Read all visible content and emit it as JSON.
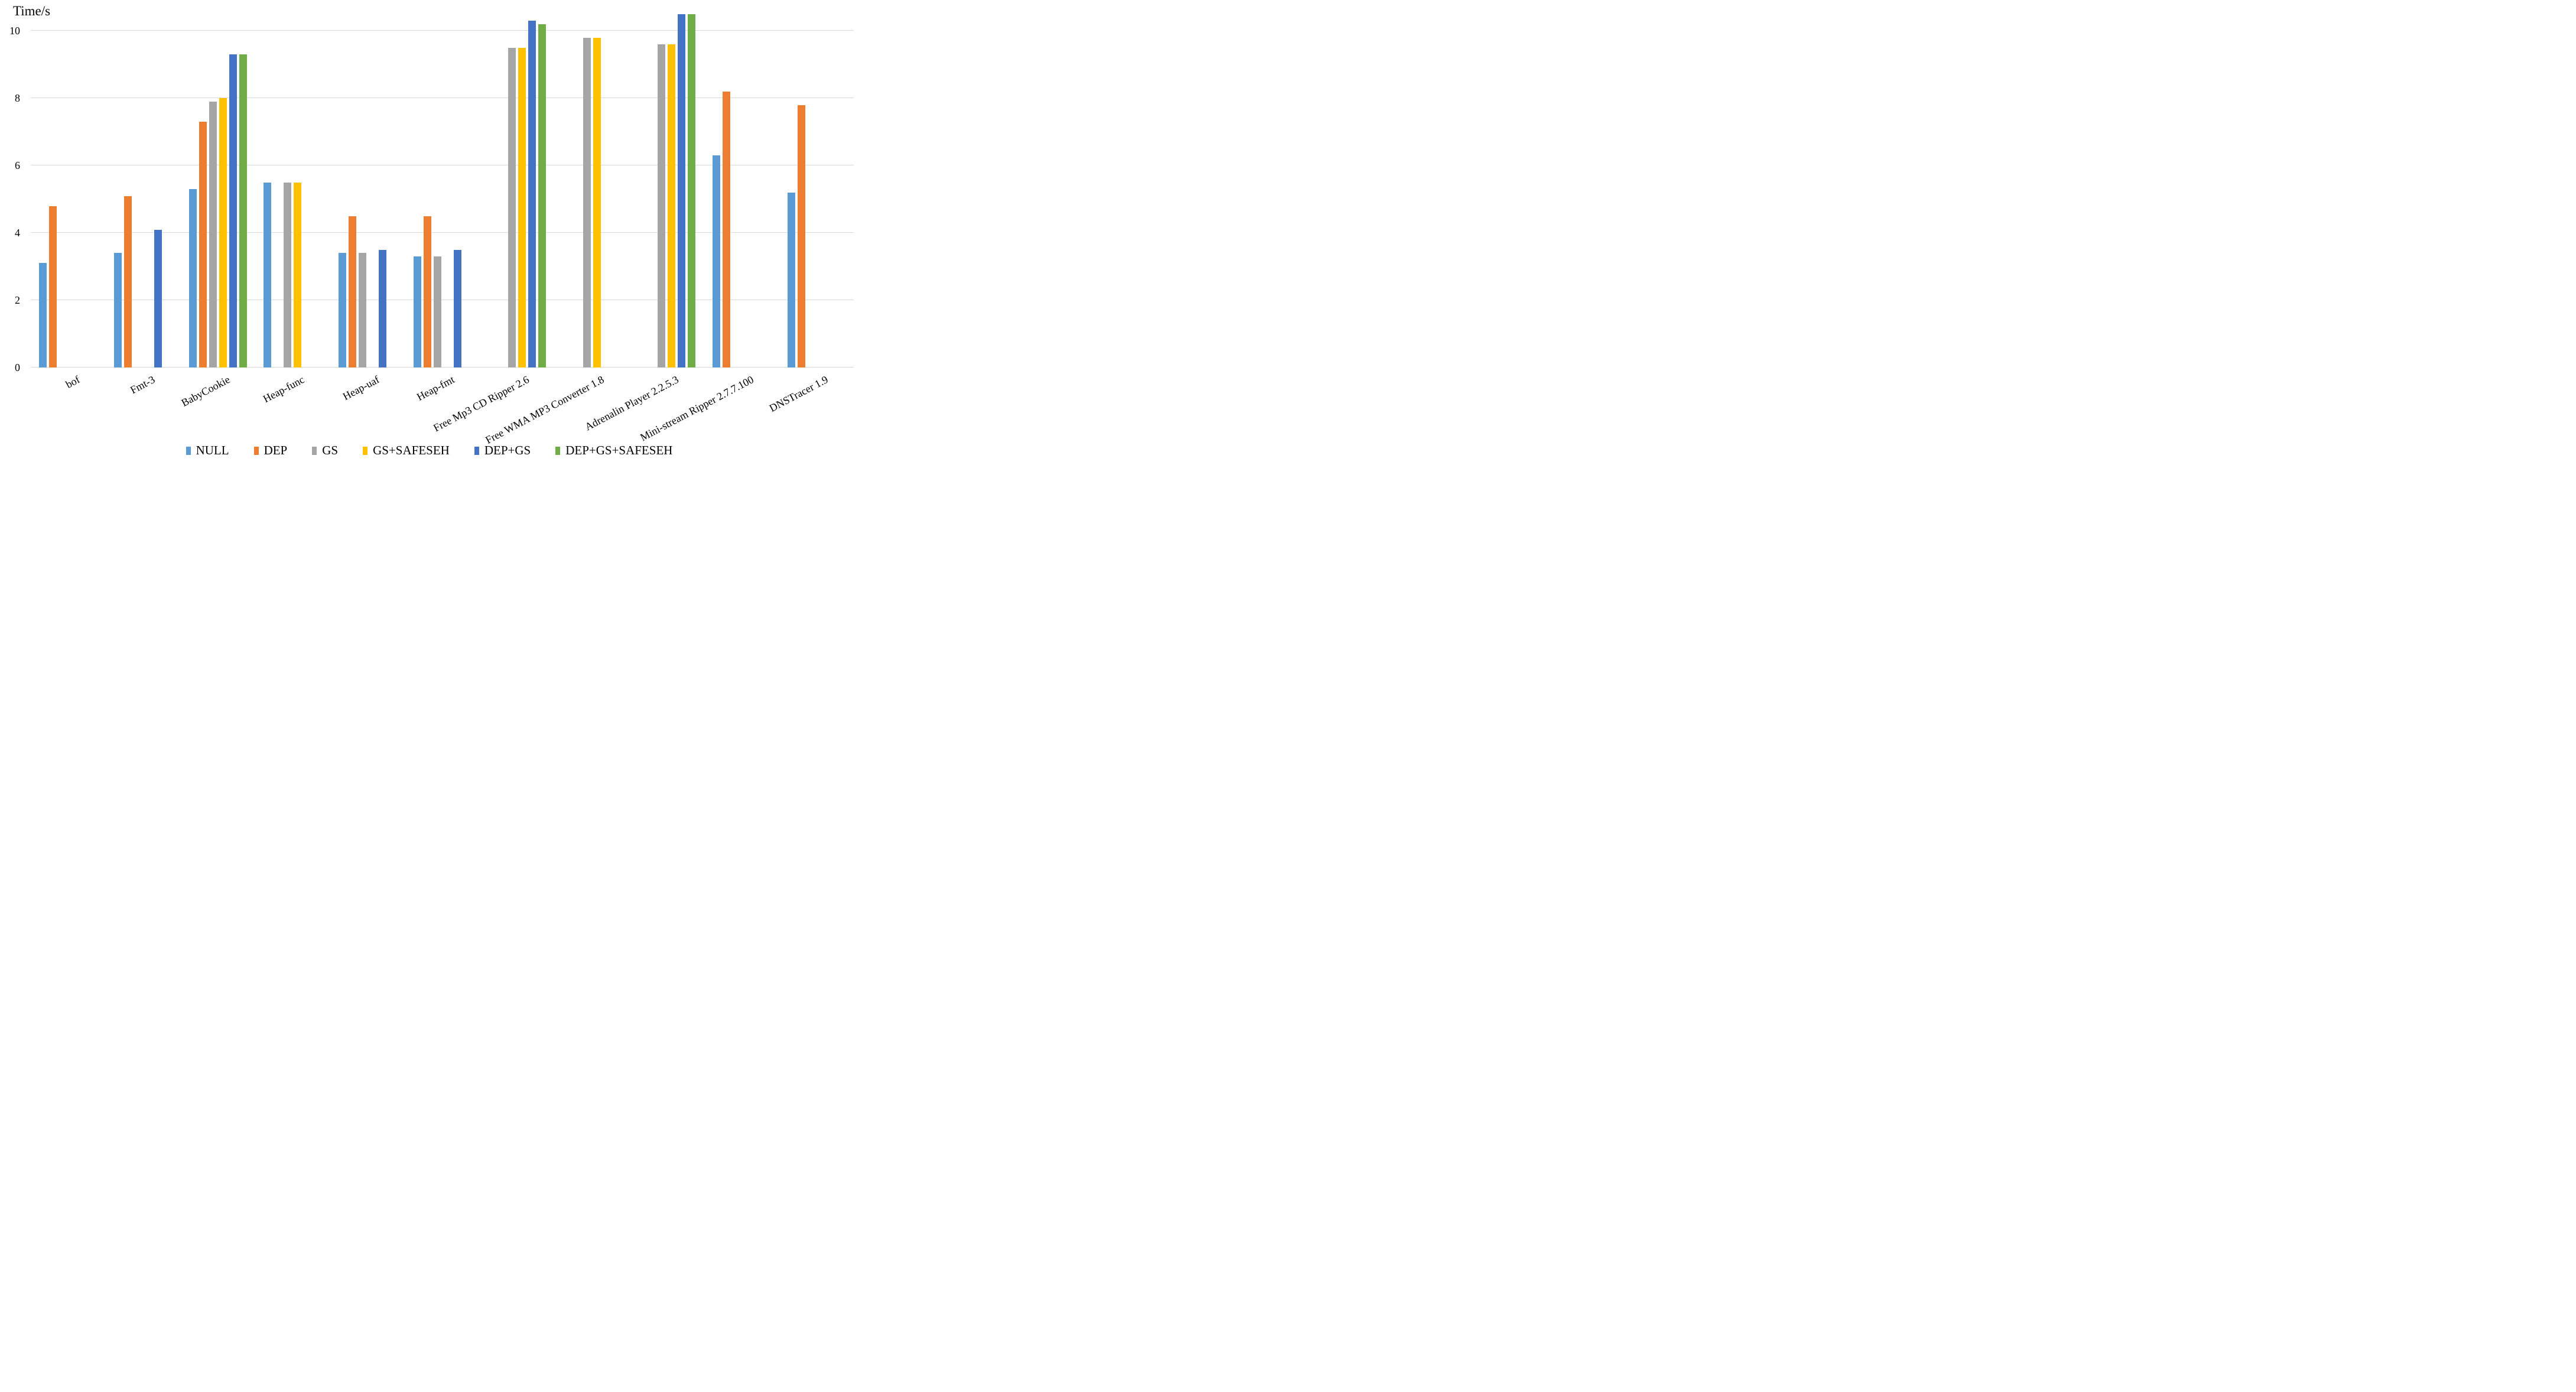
{
  "chart_data": {
    "type": "bar",
    "title": "",
    "y_axis": {
      "label": "Time/s",
      "min": 0,
      "max": 10,
      "tick_step": 2,
      "ticks": [
        0,
        2,
        4,
        6,
        8,
        10
      ],
      "plot_max": 10.5
    },
    "grid": true,
    "legend_position": "bottom",
    "categories": [
      "bof",
      "Fmt-3",
      "BabyCookie",
      "Heap-func",
      "Heap-uaf",
      "Heap-fmt",
      "Free Mp3 CD Ripper 2.6",
      "Free WMA MP3 Converter 1.8",
      "Adrenalin Player 2.2.5.3",
      "Mini-stream Ripper 2.7.7.100",
      "DNSTracer 1.9"
    ],
    "series": [
      {
        "name": "NULL",
        "color": "#5B9BD5",
        "values": [
          3.1,
          3.4,
          5.3,
          5.5,
          3.4,
          3.3,
          null,
          null,
          null,
          6.3,
          5.2
        ]
      },
      {
        "name": "DEP",
        "color": "#ED7D31",
        "values": [
          4.8,
          5.1,
          7.3,
          null,
          4.5,
          4.5,
          null,
          null,
          null,
          8.2,
          7.8
        ]
      },
      {
        "name": "GS",
        "color": "#A5A5A5",
        "values": [
          null,
          null,
          7.9,
          5.5,
          3.4,
          3.3,
          9.5,
          9.8,
          9.6,
          null,
          null
        ]
      },
      {
        "name": "GS+SAFESEH",
        "color": "#FFC000",
        "values": [
          null,
          null,
          8.0,
          5.5,
          null,
          null,
          9.5,
          9.8,
          9.6,
          null,
          null
        ]
      },
      {
        "name": "DEP+GS",
        "color": "#4472C4",
        "values": [
          null,
          4.1,
          9.3,
          null,
          3.5,
          3.5,
          10.3,
          null,
          10.5,
          null,
          null
        ]
      },
      {
        "name": "DEP+GS+SAFESEH",
        "color": "#70AD47",
        "values": [
          null,
          null,
          9.3,
          null,
          null,
          null,
          10.2,
          null,
          10.5,
          null,
          null
        ]
      }
    ],
    "gridline_color": "#d9d9d9"
  }
}
